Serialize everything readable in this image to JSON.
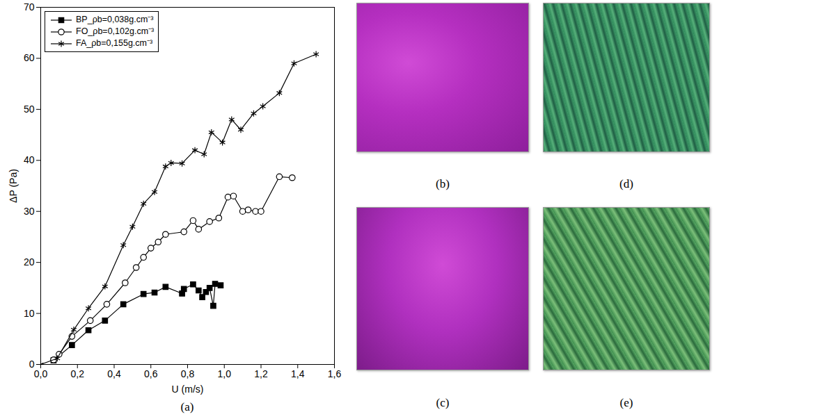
{
  "chart_data": {
    "type": "line",
    "caption": "(a)",
    "x_label": "U (m/s)",
    "y_label": "ΔP (Pa)",
    "xlim": [
      0,
      1.6
    ],
    "xticks": [
      {
        "value": 0,
        "label": "0,0"
      },
      {
        "value": 0.2,
        "label": "0,2"
      },
      {
        "value": 0.4,
        "label": "0,4"
      },
      {
        "value": 0.6,
        "label": "0,6"
      },
      {
        "value": 0.8,
        "label": "0,8"
      },
      {
        "value": 1.0,
        "label": "1,0"
      },
      {
        "value": 1.2,
        "label": "1,2"
      },
      {
        "value": 1.4,
        "label": "1,4"
      },
      {
        "value": 1.6,
        "label": "1,6"
      }
    ],
    "ylim": [
      0,
      70
    ],
    "yticks": [
      0,
      10,
      20,
      30,
      40,
      50,
      60,
      70
    ],
    "grid": false,
    "legend": "top-left",
    "series": [
      {
        "name": "BP_ρb=0,038g.cm⁻³",
        "color": "#000000",
        "marker": "square",
        "x": [
          0.07,
          0.17,
          0.26,
          0.35,
          0.45,
          0.56,
          0.62,
          0.68,
          0.77,
          0.78,
          0.83,
          0.86,
          0.88,
          0.9,
          0.92,
          0.94,
          0.95,
          0.98
        ],
        "values": [
          0.8,
          3.8,
          6.7,
          8.6,
          11.8,
          13.8,
          14.1,
          15.2,
          13.9,
          14.8,
          15.7,
          14.5,
          13.2,
          14.2,
          15.0,
          11.5,
          15.8,
          15.5
        ]
      },
      {
        "name": "FO_ρb=0,102g.cm⁻³",
        "color": "#000000",
        "marker": "circle-open",
        "x": [
          0.07,
          0.1,
          0.17,
          0.27,
          0.36,
          0.46,
          0.52,
          0.56,
          0.6,
          0.64,
          0.68,
          0.78,
          0.83,
          0.86,
          0.92,
          0.97,
          1.02,
          1.05,
          1.1,
          1.13,
          1.17,
          1.2,
          1.3,
          1.37
        ],
        "values": [
          0.9,
          2.0,
          5.5,
          8.6,
          11.8,
          16.0,
          19.0,
          21.0,
          22.8,
          24.0,
          25.5,
          26.0,
          28.2,
          26.5,
          28.0,
          28.7,
          32.8,
          33.0,
          30.0,
          30.3,
          30.0,
          30.0,
          36.8,
          36.6
        ]
      },
      {
        "name": "FA_ρb=0,155g.cm⁻³",
        "color": "#000000",
        "marker": "asterisk",
        "x": [
          0.0,
          0.09,
          0.18,
          0.26,
          0.35,
          0.45,
          0.5,
          0.56,
          0.62,
          0.68,
          0.71,
          0.77,
          0.84,
          0.89,
          0.93,
          0.99,
          1.04,
          1.09,
          1.16,
          1.21,
          1.3,
          1.38,
          1.5
        ],
        "values": [
          0.0,
          1.2,
          6.8,
          11.0,
          15.3,
          23.4,
          27.0,
          31.5,
          33.8,
          38.8,
          39.5,
          39.4,
          42.0,
          41.2,
          45.5,
          43.5,
          48.0,
          46.0,
          49.2,
          50.6,
          53.2,
          59.0,
          60.8
        ]
      }
    ]
  },
  "photos": [
    {
      "label": "(b)"
    },
    {
      "label": "(d)"
    },
    {
      "label": "(c)"
    },
    {
      "label": "(e)"
    }
  ]
}
